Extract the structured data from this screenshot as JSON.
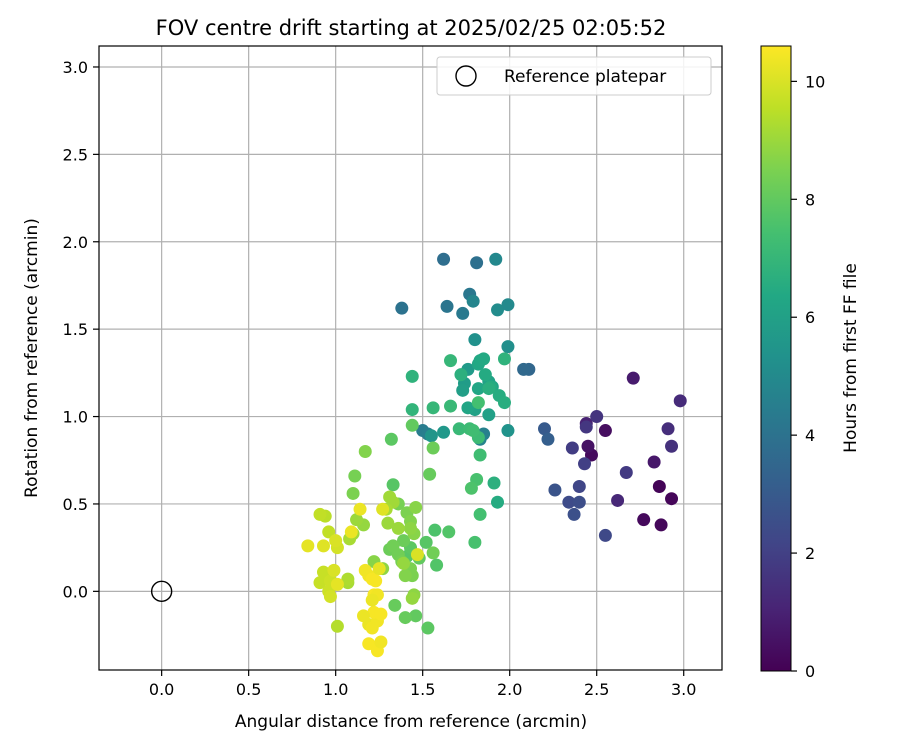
{
  "chart_data": {
    "type": "scatter",
    "title": "FOV centre drift starting at 2025/02/25 02:05:52",
    "xlabel": "Angular distance from reference (arcmin)",
    "ylabel": "Rotation from reference (arcmin)",
    "xlim": [
      -0.36,
      3.22
    ],
    "ylim": [
      -0.45,
      3.12
    ],
    "xticks": [
      "0.0",
      "0.5",
      "1.0",
      "1.5",
      "2.0",
      "2.5",
      "3.0"
    ],
    "yticks": [
      "0.0",
      "0.5",
      "1.0",
      "1.5",
      "2.0",
      "2.5",
      "3.0"
    ],
    "grid": true,
    "legend": {
      "placement": "top-right",
      "entries": [
        {
          "label": "Reference platepar",
          "marker": "open-circle"
        }
      ]
    },
    "reference_point": {
      "x": 0.0,
      "y": 0.0
    },
    "colorbar": {
      "label": "Hours from first FF file",
      "range": [
        0,
        10.6
      ],
      "ticks": [
        "0",
        "2",
        "4",
        "6",
        "8",
        "10"
      ],
      "colormap": "viridis",
      "colors": [
        "#440154",
        "#482475",
        "#414487",
        "#355f8d",
        "#2a788e",
        "#21918c",
        "#22a884",
        "#44bf70",
        "#7ad151",
        "#bddf26",
        "#fde725"
      ]
    },
    "series": [
      {
        "points": [
          [
            2.86,
            0.6,
            0.1
          ],
          [
            2.93,
            0.53,
            0.15
          ],
          [
            2.87,
            0.38,
            0.2
          ],
          [
            2.77,
            0.41,
            0.25
          ],
          [
            2.47,
            0.78,
            0.3
          ],
          [
            2.55,
            0.92,
            0.4
          ],
          [
            2.45,
            0.83,
            0.5
          ],
          [
            2.83,
            0.74,
            0.7
          ],
          [
            2.71,
            1.22,
            0.8
          ],
          [
            2.44,
            0.96,
            1.0
          ],
          [
            2.62,
            0.52,
            1.2
          ],
          [
            2.98,
            1.09,
            1.3
          ],
          [
            2.91,
            0.93,
            1.4
          ],
          [
            2.93,
            0.83,
            1.5
          ],
          [
            2.5,
            1.0,
            1.6
          ],
          [
            2.44,
            0.94,
            1.7
          ],
          [
            2.67,
            0.68,
            1.8
          ],
          [
            2.36,
            0.82,
            1.9
          ],
          [
            2.43,
            0.73,
            2.0
          ],
          [
            2.4,
            0.6,
            2.2
          ],
          [
            2.55,
            0.32,
            2.3
          ],
          [
            2.34,
            0.51,
            2.4
          ],
          [
            2.4,
            0.51,
            2.5
          ],
          [
            2.37,
            0.44,
            2.6
          ],
          [
            2.26,
            0.58,
            2.7
          ],
          [
            2.2,
            0.93,
            3.0
          ],
          [
            2.22,
            0.87,
            3.2
          ],
          [
            2.11,
            1.27,
            3.5
          ],
          [
            2.08,
            1.27,
            3.6
          ],
          [
            1.62,
            1.9,
            3.8
          ],
          [
            1.81,
            1.88,
            3.9
          ],
          [
            1.38,
            1.62,
            4.0
          ],
          [
            1.64,
            1.63,
            4.1
          ],
          [
            1.77,
            1.7,
            4.2
          ],
          [
            1.73,
            1.59,
            4.3
          ],
          [
            1.5,
            0.92,
            4.4
          ],
          [
            1.53,
            0.9,
            4.5
          ],
          [
            1.85,
            0.9,
            4.6
          ],
          [
            1.83,
            0.87,
            4.7
          ],
          [
            1.79,
            1.66,
            4.8
          ],
          [
            1.92,
            1.9,
            4.9
          ],
          [
            1.99,
            1.64,
            5.0
          ],
          [
            1.93,
            1.61,
            5.1
          ],
          [
            1.99,
            1.4,
            5.2
          ],
          [
            1.8,
            1.44,
            5.3
          ],
          [
            1.99,
            0.92,
            5.4
          ],
          [
            1.55,
            0.89,
            5.5
          ],
          [
            1.62,
            0.91,
            5.6
          ],
          [
            1.76,
            1.27,
            5.7
          ],
          [
            1.74,
            1.19,
            5.8
          ],
          [
            1.73,
            1.15,
            5.9
          ],
          [
            1.88,
            1.01,
            6.0
          ],
          [
            1.8,
            1.04,
            6.05
          ],
          [
            1.88,
            1.2,
            6.1
          ],
          [
            1.9,
            1.17,
            6.15
          ],
          [
            1.76,
            1.05,
            6.2
          ],
          [
            1.82,
            1.16,
            6.25
          ],
          [
            1.82,
            1.3,
            6.3
          ],
          [
            1.83,
            1.32,
            6.35
          ],
          [
            1.85,
            1.33,
            6.4
          ],
          [
            1.86,
            1.24,
            6.45
          ],
          [
            1.89,
            1.17,
            6.5
          ],
          [
            1.94,
            1.12,
            6.55
          ],
          [
            1.97,
            1.08,
            6.6
          ],
          [
            1.88,
            1.16,
            6.65
          ],
          [
            1.72,
            1.24,
            6.7
          ],
          [
            1.93,
            0.51,
            6.5
          ],
          [
            1.91,
            0.62,
            6.7
          ],
          [
            1.97,
            1.33,
            6.8
          ],
          [
            1.44,
            1.23,
            6.8
          ],
          [
            1.44,
            1.04,
            6.9
          ],
          [
            1.56,
            1.05,
            7.0
          ],
          [
            1.66,
            1.32,
            7.0
          ],
          [
            1.66,
            1.06,
            7.1
          ],
          [
            1.71,
            0.93,
            7.1
          ],
          [
            1.77,
            0.93,
            7.2
          ],
          [
            1.82,
            0.88,
            7.2
          ],
          [
            1.83,
            0.78,
            7.3
          ],
          [
            1.79,
            0.92,
            7.3
          ],
          [
            1.82,
            1.08,
            7.4
          ],
          [
            1.83,
            0.44,
            7.4
          ],
          [
            1.8,
            0.28,
            7.5
          ],
          [
            1.81,
            0.64,
            7.5
          ],
          [
            1.78,
            0.59,
            7.6
          ],
          [
            1.57,
            0.35,
            7.6
          ],
          [
            1.65,
            0.34,
            7.7
          ],
          [
            1.58,
            0.15,
            7.7
          ],
          [
            1.52,
            0.28,
            7.8
          ],
          [
            1.41,
            0.2,
            7.8
          ],
          [
            1.43,
            0.25,
            7.9
          ],
          [
            1.48,
            0.19,
            8.0
          ],
          [
            1.53,
            -0.21,
            7.9
          ],
          [
            1.46,
            -0.14,
            8.0
          ],
          [
            1.4,
            -0.15,
            8.1
          ],
          [
            1.34,
            -0.08,
            8.1
          ],
          [
            1.31,
            0.24,
            8.2
          ],
          [
            1.39,
            0.29,
            8.2
          ],
          [
            1.33,
            0.26,
            8.3
          ],
          [
            1.36,
            0.21,
            8.3
          ],
          [
            1.38,
            0.17,
            8.4
          ],
          [
            1.42,
            0.12,
            8.4
          ],
          [
            1.43,
            0.13,
            8.5
          ],
          [
            1.44,
            0.09,
            8.5
          ],
          [
            1.4,
            0.09,
            8.6
          ],
          [
            1.33,
            0.61,
            7.8
          ],
          [
            1.32,
            0.87,
            7.9
          ],
          [
            1.44,
            0.95,
            8.0
          ],
          [
            1.54,
            0.67,
            8.1
          ],
          [
            1.56,
            0.82,
            8.2
          ],
          [
            1.56,
            0.22,
            8.3
          ],
          [
            1.36,
            0.5,
            8.4
          ],
          [
            1.41,
            0.45,
            8.5
          ],
          [
            1.43,
            0.4,
            8.6
          ],
          [
            1.45,
            0.33,
            8.7
          ],
          [
            1.46,
            0.48,
            8.7
          ],
          [
            1.43,
            0.36,
            8.8
          ],
          [
            1.45,
            -0.02,
            8.8
          ],
          [
            1.44,
            -0.04,
            8.9
          ],
          [
            1.39,
            0.16,
            8.9
          ],
          [
            1.36,
            0.36,
            9.0
          ],
          [
            1.3,
            0.39,
            9.0
          ],
          [
            1.31,
            0.54,
            9.1
          ],
          [
            1.33,
            0.51,
            9.1
          ],
          [
            1.29,
            0.47,
            9.2
          ],
          [
            1.11,
            0.66,
            8.4
          ],
          [
            1.1,
            0.56,
            8.5
          ],
          [
            1.17,
            0.8,
            8.6
          ],
          [
            1.22,
            0.17,
            8.7
          ],
          [
            1.27,
            0.13,
            8.8
          ],
          [
            1.16,
            0.38,
            8.9
          ],
          [
            1.12,
            0.41,
            9.0
          ],
          [
            1.1,
            0.33,
            9.1
          ],
          [
            1.08,
            0.3,
            9.2
          ],
          [
            1.07,
            0.05,
            9.2
          ],
          [
            1.07,
            0.07,
            9.3
          ],
          [
            1.01,
            -0.2,
            9.4
          ],
          [
            0.94,
            0.43,
            9.5
          ],
          [
            0.91,
            0.44,
            9.6
          ],
          [
            0.96,
            0.34,
            9.6
          ],
          [
            0.93,
            0.11,
            9.7
          ],
          [
            0.91,
            0.05,
            9.7
          ],
          [
            0.97,
            0.06,
            9.8
          ],
          [
            0.96,
            0.0,
            9.8
          ],
          [
            0.97,
            -0.03,
            9.9
          ],
          [
            1.01,
            0.25,
            9.9
          ],
          [
            1.0,
            0.29,
            10.0
          ],
          [
            0.99,
            0.12,
            10.0
          ],
          [
            0.93,
            0.26,
            10.1
          ],
          [
            0.84,
            0.26,
            10.2
          ],
          [
            1.01,
            0.04,
            10.2
          ],
          [
            1.09,
            0.34,
            10.3
          ],
          [
            1.14,
            0.47,
            10.3
          ],
          [
            1.17,
            0.12,
            10.4
          ],
          [
            1.19,
            0.09,
            10.4
          ],
          [
            1.21,
            0.07,
            10.5
          ],
          [
            1.23,
            0.06,
            10.5
          ],
          [
            1.25,
            0.13,
            10.2
          ],
          [
            1.27,
            0.47,
            10.1
          ],
          [
            1.47,
            0.21,
            10.0
          ],
          [
            1.19,
            -0.19,
            10.3
          ],
          [
            1.21,
            -0.21,
            10.4
          ],
          [
            1.24,
            -0.17,
            10.4
          ],
          [
            1.22,
            -0.12,
            10.5
          ],
          [
            1.26,
            -0.13,
            10.5
          ],
          [
            1.22,
            -0.02,
            10.5
          ],
          [
            1.24,
            -0.02,
            10.4
          ],
          [
            1.16,
            -0.14,
            10.3
          ],
          [
            1.19,
            -0.3,
            10.5
          ],
          [
            1.24,
            -0.34,
            10.5
          ],
          [
            1.26,
            -0.29,
            10.4
          ],
          [
            1.21,
            -0.05,
            10.3
          ]
        ]
      }
    ]
  }
}
